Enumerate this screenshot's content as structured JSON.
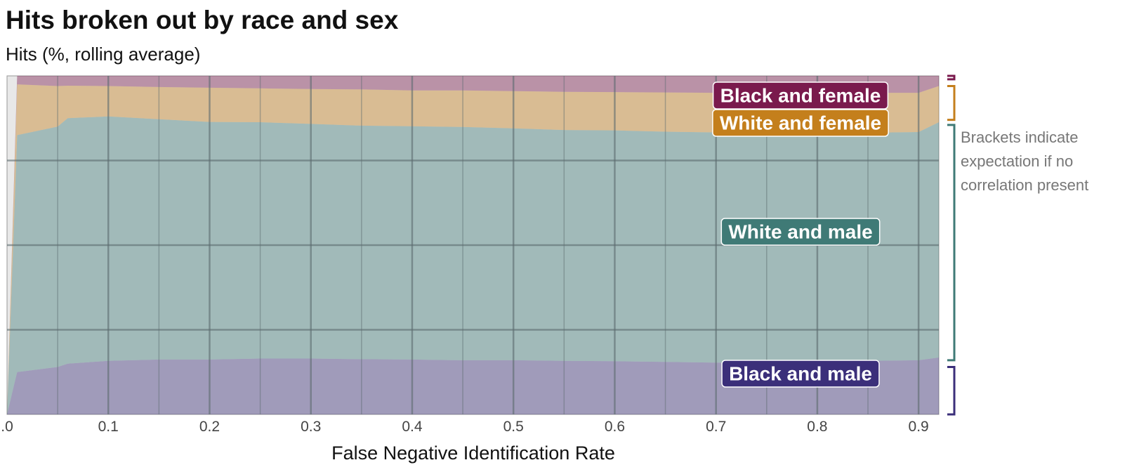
{
  "title": "Hits broken out by race and sex",
  "subtitle": "Hits (%, rolling average)",
  "note_lines": [
    "Brackets indicate",
    "expectation if no",
    "correlation present"
  ],
  "chart_data": {
    "type": "area",
    "title": "Hits broken out by race and sex",
    "subtitle": "Hits (%, rolling average)",
    "xlabel": "False Negative Identification Rate",
    "ylabel": "",
    "xlim": [
      0.0,
      0.92
    ],
    "ylim": [
      0,
      100
    ],
    "stacked": true,
    "x_ticks": [
      ".0",
      "0.1",
      "0.2",
      "0.3",
      "0.4",
      "0.5",
      "0.6",
      "0.7",
      "0.8",
      "0.9"
    ],
    "x": [
      0.0,
      0.01,
      0.05,
      0.06,
      0.1,
      0.15,
      0.2,
      0.25,
      0.3,
      0.35,
      0.4,
      0.45,
      0.5,
      0.55,
      0.6,
      0.65,
      0.7,
      0.75,
      0.8,
      0.85,
      0.9,
      0.92
    ],
    "series": [
      {
        "name": "Black and male",
        "color": "#3b2f7a",
        "values": [
          0,
          12.5,
          14.0,
          15.0,
          15.8,
          16.2,
          16.2,
          16.5,
          16.5,
          16.3,
          16.2,
          16.0,
          16.0,
          15.8,
          15.7,
          15.5,
          15.3,
          15.3,
          15.6,
          15.8,
          16.0,
          16.8
        ]
      },
      {
        "name": "White and male",
        "color": "#3f7a76",
        "values": [
          0,
          70.0,
          71.0,
          72.5,
          72.2,
          71.0,
          70.2,
          69.8,
          69.3,
          69.0,
          68.9,
          68.9,
          68.5,
          68.2,
          68.2,
          68.0,
          68.0,
          68.0,
          67.6,
          67.4,
          67.4,
          69.5
        ]
      },
      {
        "name": "White and female",
        "color": "#c47f1c",
        "values": [
          0,
          15.0,
          12.0,
          9.6,
          9.0,
          9.5,
          10.1,
          10.0,
          10.3,
          10.7,
          10.6,
          10.8,
          11.0,
          11.3,
          11.3,
          11.6,
          11.7,
          11.7,
          11.8,
          11.8,
          11.6,
          10.7
        ]
      },
      {
        "name": "Black and female",
        "color": "#7a1a4d",
        "values": [
          0,
          2.5,
          3.0,
          2.9,
          3.0,
          3.3,
          3.5,
          3.7,
          3.9,
          4.0,
          4.3,
          4.3,
          4.5,
          4.7,
          4.8,
          4.9,
          5.0,
          5.0,
          5.0,
          5.0,
          5.0,
          3.0
        ]
      }
    ],
    "brackets": [
      {
        "series": "Black and female",
        "expected_range": [
          99.0,
          100
        ]
      },
      {
        "series": "White and female",
        "expected_range": [
          87.0,
          97.0
        ]
      },
      {
        "series": "White and male",
        "expected_range": [
          16.0,
          85.5
        ]
      },
      {
        "series": "Black and male",
        "expected_range": [
          0,
          14.0
        ]
      }
    ],
    "grid": true,
    "legend": "direct labels on right"
  }
}
